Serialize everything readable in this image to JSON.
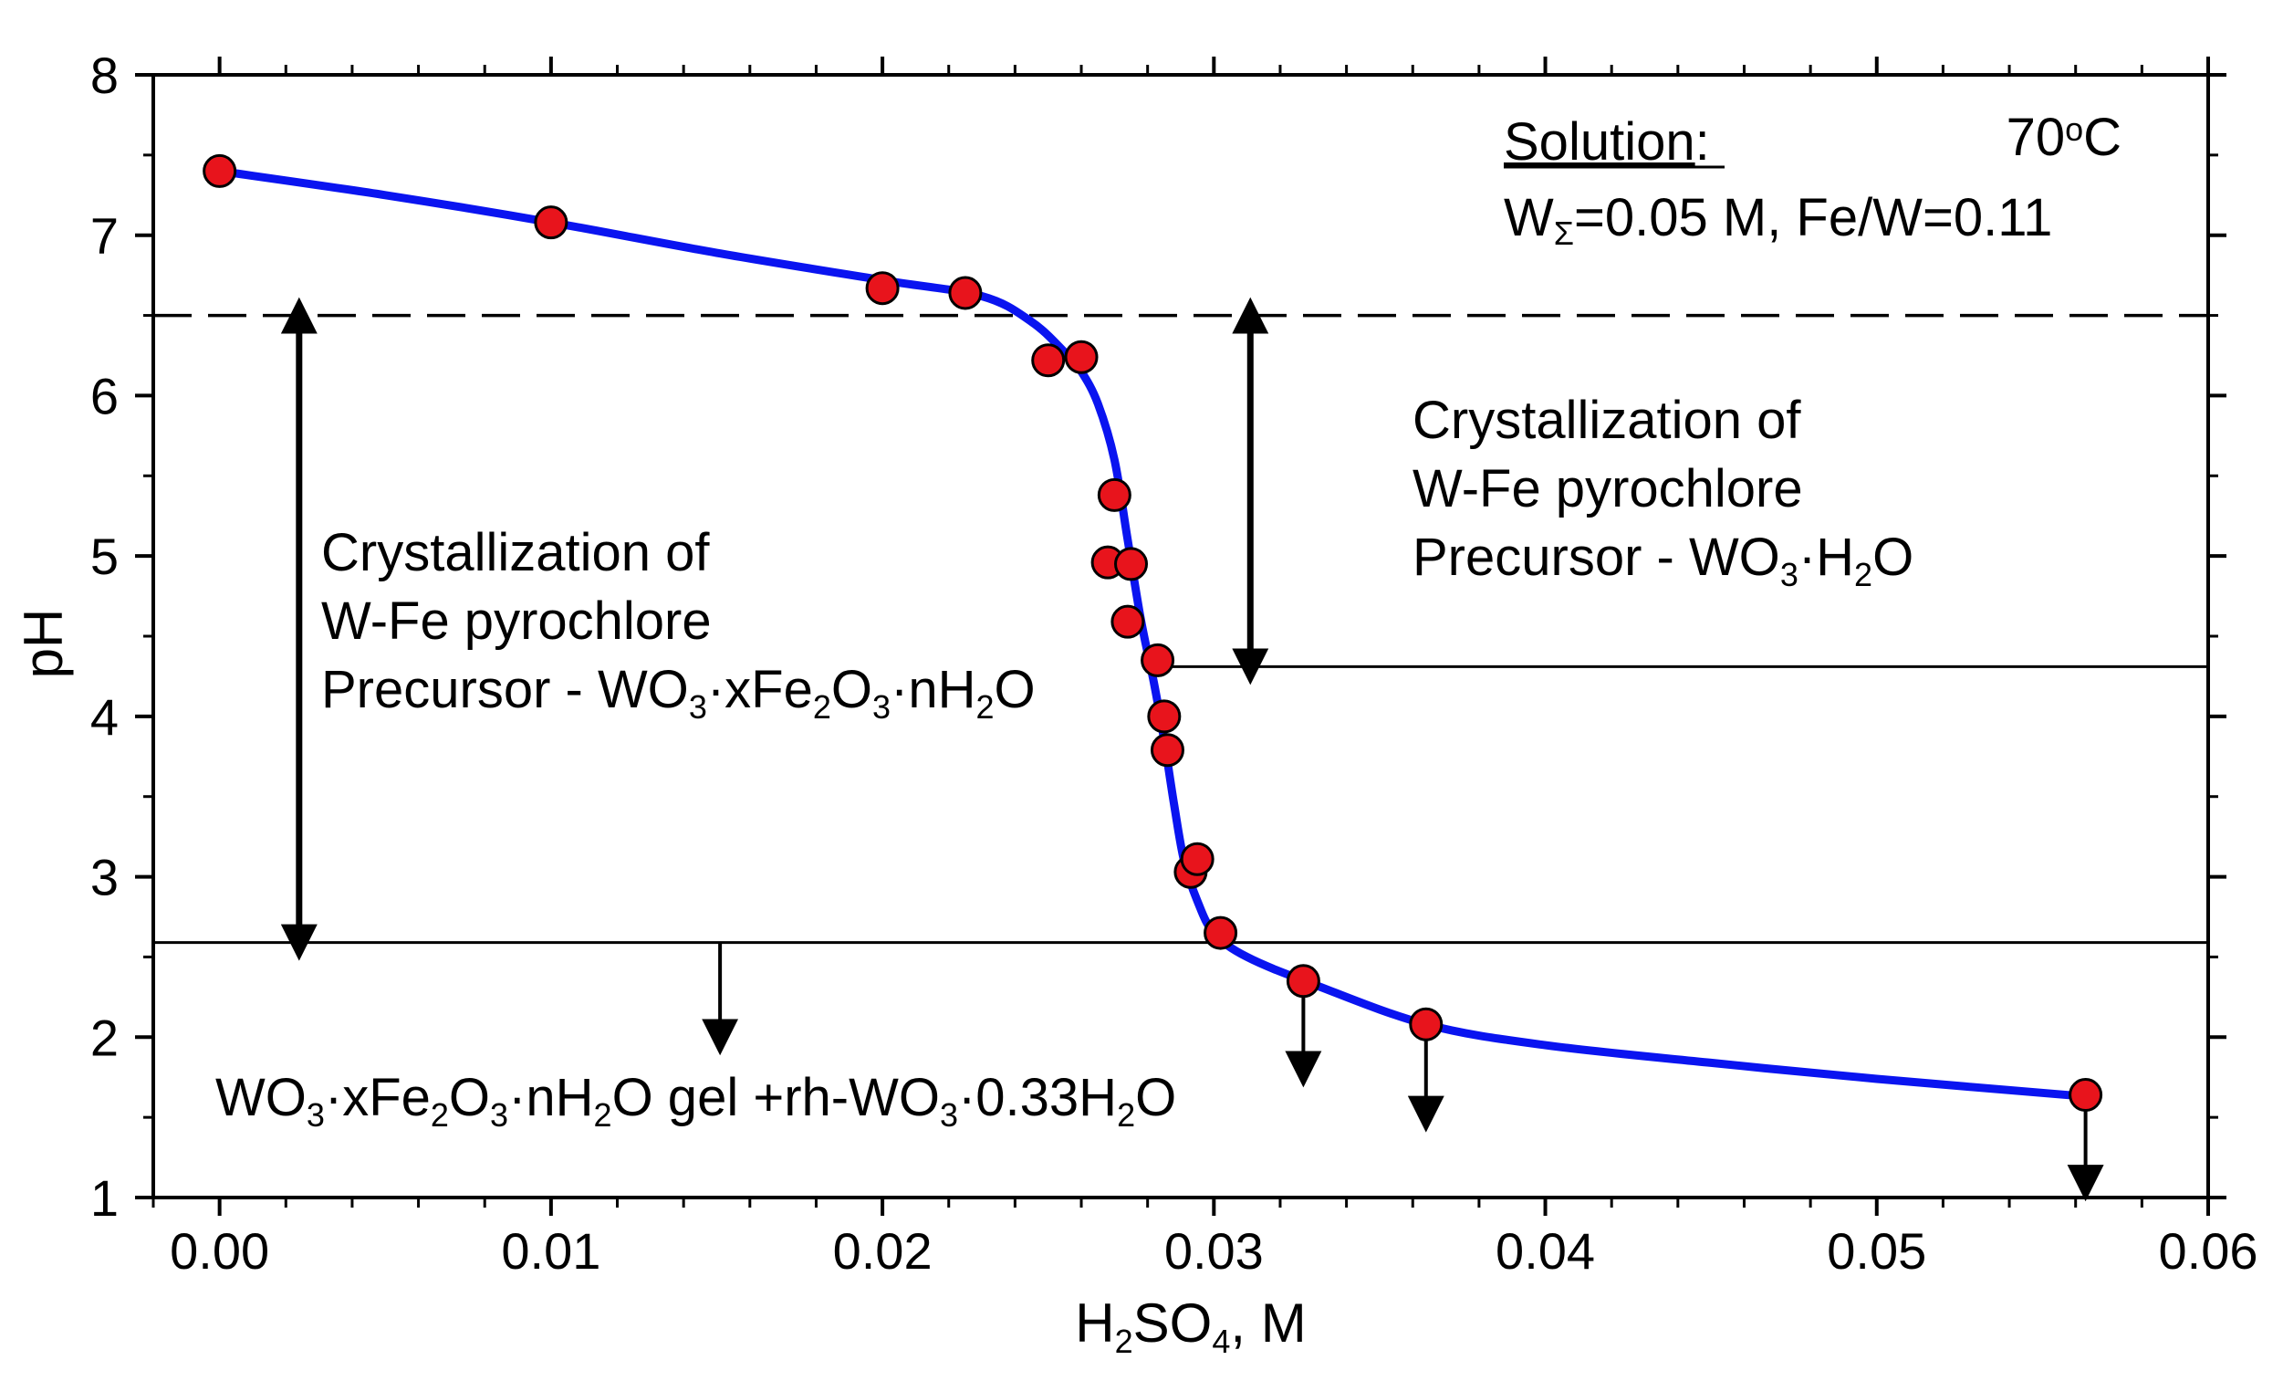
{
  "chart_data": {
    "type": "scatter",
    "xlabel": "H2SO4, M",
    "xlabel_parts": {
      "a": "H",
      "sub1": "2",
      "b": "SO",
      "sub2": "4",
      "c": ", M"
    },
    "ylabel": "pH",
    "xlim": [
      -0.002,
      0.06
    ],
    "ylim": [
      1,
      8
    ],
    "x_ticks": [
      0.0,
      0.01,
      0.02,
      0.03,
      0.04,
      0.05,
      0.06
    ],
    "x_tick_labels": [
      "0.00",
      "0.01",
      "0.02",
      "0.03",
      "0.04",
      "0.05",
      "0.06"
    ],
    "y_ticks": [
      1,
      2,
      3,
      4,
      5,
      6,
      7,
      8
    ],
    "y_tick_labels": [
      "1",
      "2",
      "3",
      "4",
      "5",
      "6",
      "7",
      "8"
    ],
    "series": [
      {
        "name": "measured pH",
        "marker": "circle",
        "color": "#e8141c",
        "points": [
          [
            0.0,
            7.4
          ],
          [
            0.01,
            7.08
          ],
          [
            0.02,
            6.67
          ],
          [
            0.0225,
            6.64
          ],
          [
            0.025,
            6.22
          ],
          [
            0.026,
            6.24
          ],
          [
            0.027,
            5.38
          ],
          [
            0.0268,
            4.96
          ],
          [
            0.0275,
            4.95
          ],
          [
            0.0274,
            4.59
          ],
          [
            0.0283,
            4.35
          ],
          [
            0.0285,
            4.0
          ],
          [
            0.0286,
            3.79
          ],
          [
            0.0293,
            3.03
          ],
          [
            0.0295,
            3.11
          ],
          [
            0.0302,
            2.65
          ],
          [
            0.0327,
            2.35
          ],
          [
            0.0364,
            2.08
          ],
          [
            0.0563,
            1.64
          ]
        ]
      },
      {
        "name": "fitted curve",
        "type": "line",
        "color": "#0a14f0",
        "points": [
          [
            0.0,
            7.4
          ],
          [
            0.005,
            7.25
          ],
          [
            0.01,
            7.08
          ],
          [
            0.015,
            6.89
          ],
          [
            0.02,
            6.72
          ],
          [
            0.023,
            6.62
          ],
          [
            0.0245,
            6.46
          ],
          [
            0.0255,
            6.27
          ],
          [
            0.026,
            6.15
          ],
          [
            0.0265,
            5.95
          ],
          [
            0.027,
            5.6
          ],
          [
            0.0274,
            5.1
          ],
          [
            0.0278,
            4.6
          ],
          [
            0.0282,
            4.2
          ],
          [
            0.0285,
            3.85
          ],
          [
            0.0288,
            3.45
          ],
          [
            0.0291,
            3.1
          ],
          [
            0.0295,
            2.85
          ],
          [
            0.03,
            2.65
          ],
          [
            0.031,
            2.5
          ],
          [
            0.033,
            2.33
          ],
          [
            0.0364,
            2.08
          ],
          [
            0.04,
            1.95
          ],
          [
            0.045,
            1.84
          ],
          [
            0.05,
            1.74
          ],
          [
            0.0563,
            1.63
          ]
        ]
      }
    ],
    "reference_lines": [
      {
        "name": "pH 6.5 boundary",
        "y": 6.5,
        "style": "dashed",
        "x_from": -0.002,
        "x_to": 0.06
      },
      {
        "name": "pH 4.3 boundary",
        "y": 4.31,
        "style": "solid",
        "x_from": 0.0285,
        "x_to": 0.06
      },
      {
        "name": "pH 2.6 boundary",
        "y": 2.59,
        "style": "solid",
        "x_from": -0.002,
        "x_to": 0.06
      }
    ],
    "arrows": [
      {
        "name": "left range double arrow",
        "x": 0.0024,
        "y_from": 6.5,
        "y_to": 2.59,
        "double": true
      },
      {
        "name": "right range double arrow",
        "x": 0.0311,
        "y_from": 6.5,
        "y_to": 4.31,
        "double": true
      },
      {
        "name": "gel down arrow",
        "x": 0.0151,
        "y_from": 2.59,
        "y_to": 2.0,
        "double": false
      },
      {
        "name": "point down arrow 1",
        "x": 0.0327,
        "y_from": 2.35,
        "y_to": 1.8,
        "double": false
      },
      {
        "name": "point down arrow 2",
        "x": 0.0364,
        "y_from": 2.08,
        "y_to": 1.52,
        "double": false
      },
      {
        "name": "point down arrow 3",
        "x": 0.0563,
        "y_from": 1.64,
        "y_to": 1.09,
        "double": false
      }
    ],
    "annotations": {
      "solution_label": "Solution",
      "solution_colon": ":",
      "temperature": {
        "value": "70",
        "degree": "o",
        "unit": "C"
      },
      "conditions": {
        "w": "W",
        "w_sub": "Σ",
        "rest": "=0.05 M, Fe/W=0.11"
      },
      "left_region": {
        "line1": "Crystallization of",
        "line2": "W-Fe pyrochlore",
        "line3": {
          "t1": "Precursor - WO",
          "s1": "3",
          "t2": "·xFe",
          "s2": "2",
          "t3": "O",
          "s3": "3",
          "t4": "·nH",
          "s4": "2",
          "t5": "O"
        }
      },
      "right_region": {
        "line1": "Crystallization of",
        "line2": "W-Fe pyrochlore",
        "line3": {
          "t1": "Precursor - WO",
          "s1": "3",
          "t2": "·H",
          "s2": "2",
          "t3": "O"
        }
      },
      "bottom_region": {
        "t1": "WO",
        "s1": "3",
        "t2": "·xFe",
        "s2": "2",
        "t3": "O",
        "s3": "3",
        "t4": "·nH",
        "s4": "2",
        "t5": "O gel +rh-WO",
        "s5": "3",
        "t6": "·0.33H",
        "s6": "2",
        "t7": "O"
      }
    }
  }
}
